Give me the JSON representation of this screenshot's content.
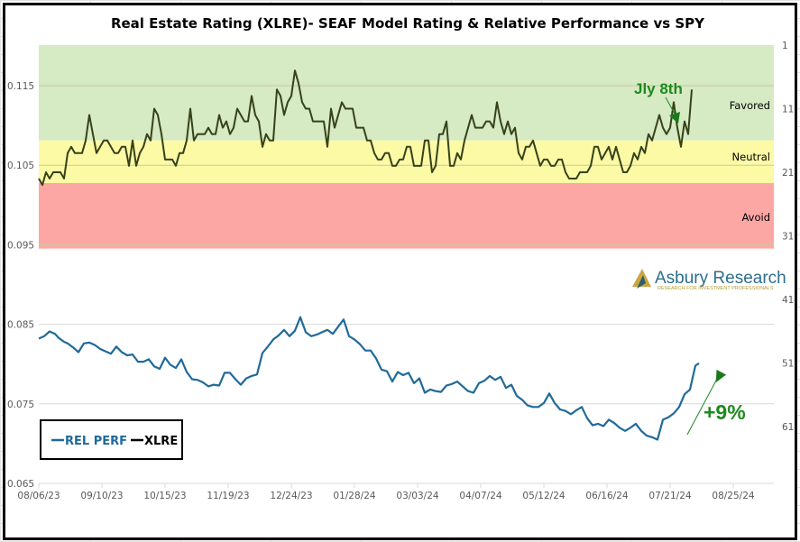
{
  "chart_data": {
    "type": "line",
    "title": "Real Estate Rating (XLRE)- SEAF Model Rating & Relative Performance vs SPY",
    "x_tick_labels": [
      "08/06/23",
      "09/10/23",
      "10/15/23",
      "11/19/23",
      "12/24/23",
      "01/28/24",
      "03/03/24",
      "04/07/24",
      "05/12/24",
      "06/16/24",
      "07/21/24",
      "08/25/24"
    ],
    "x_range": [
      "08/06/23",
      "09/22/24"
    ],
    "left_axis": {
      "label": "",
      "ticks": [
        "0.065",
        "0.075",
        "0.085",
        "0.095",
        "0.105",
        "0.115"
      ],
      "range": [
        0.065,
        0.12
      ]
    },
    "right_axis": {
      "label": "",
      "ticks": [
        "1",
        "11",
        "21",
        "31",
        "41",
        "51",
        "61"
      ],
      "range": [
        1,
        71
      ],
      "inverted": true
    },
    "bands": [
      {
        "name": "Favored",
        "from": 1,
        "to": 16,
        "color": "#d6eac4"
      },
      {
        "name": "Neutral",
        "from": 16,
        "to": 22.7,
        "color": "#fdfaa6"
      },
      {
        "name": "Avoid",
        "from": 22.7,
        "to": 33,
        "color": "#fda7a5"
      }
    ],
    "legend": {
      "position": "bottom-left",
      "entries": [
        "REL PERF",
        "XLRE"
      ]
    },
    "series": [
      {
        "name": "REL PERF",
        "axis": "left",
        "color": "#1f6a9a",
        "days": [
          0,
          3,
          6,
          9,
          11,
          14,
          16,
          19,
          22,
          25,
          28,
          31,
          34,
          37,
          40,
          43,
          46,
          49,
          52,
          55,
          58,
          61,
          64,
          67,
          70,
          73,
          76,
          79,
          82,
          85,
          88,
          91,
          94,
          97,
          100,
          103,
          106,
          109,
          112,
          115,
          118,
          121,
          124,
          127,
          130,
          133,
          136,
          139,
          142,
          145,
          148,
          151,
          154,
          157,
          160,
          163,
          166,
          169,
          172,
          175,
          178,
          181,
          184,
          187,
          190,
          193,
          196,
          199,
          202,
          205,
          208,
          211,
          214,
          217,
          220,
          223,
          226,
          229,
          232,
          235,
          238,
          241,
          244,
          247,
          250,
          253,
          256,
          259,
          262,
          265,
          268,
          271,
          274,
          277,
          280,
          283,
          286,
          289,
          292,
          295,
          298,
          301,
          304,
          307,
          310,
          313,
          316,
          319,
          322,
          325,
          328,
          331,
          334,
          337,
          340,
          343,
          346,
          349,
          352,
          355,
          358,
          361,
          364,
          366
        ],
        "values": [
          0.0832,
          0.0835,
          0.0841,
          0.0838,
          0.0833,
          0.0828,
          0.0826,
          0.0821,
          0.0815,
          0.0826,
          0.0827,
          0.0824,
          0.0819,
          0.0816,
          0.0813,
          0.0822,
          0.0815,
          0.0811,
          0.0812,
          0.0803,
          0.0803,
          0.0806,
          0.0797,
          0.0794,
          0.0808,
          0.0799,
          0.0795,
          0.0806,
          0.079,
          0.0781,
          0.078,
          0.0777,
          0.0772,
          0.0774,
          0.0773,
          0.0789,
          0.0789,
          0.0781,
          0.0774,
          0.0782,
          0.0785,
          0.0787,
          0.0814,
          0.0822,
          0.0831,
          0.0836,
          0.0843,
          0.0835,
          0.0842,
          0.0859,
          0.084,
          0.0835,
          0.0837,
          0.084,
          0.0843,
          0.0838,
          0.0847,
          0.0856,
          0.0835,
          0.0831,
          0.0825,
          0.0817,
          0.0817,
          0.0807,
          0.0793,
          0.0791,
          0.0778,
          0.079,
          0.0786,
          0.0789,
          0.0776,
          0.0782,
          0.0764,
          0.0768,
          0.0766,
          0.0765,
          0.0773,
          0.0775,
          0.0778,
          0.0772,
          0.0766,
          0.0764,
          0.0776,
          0.0779,
          0.0785,
          0.078,
          0.0784,
          0.077,
          0.0774,
          0.076,
          0.0755,
          0.0748,
          0.0746,
          0.0746,
          0.0751,
          0.0763,
          0.0751,
          0.0743,
          0.0741,
          0.0737,
          0.0742,
          0.0746,
          0.0732,
          0.0723,
          0.0725,
          0.0722,
          0.073,
          0.0726,
          0.072,
          0.0716,
          0.072,
          0.0725,
          0.0716,
          0.071,
          0.0708,
          0.0705,
          0.073,
          0.0733,
          0.0738,
          0.0746,
          0.0762,
          0.0768,
          0.0798,
          0.0801,
          0.079
        ],
        "notes": "Approximate values read from the chart; REL PERF plotted on left axis"
      },
      {
        "name": "XLRE",
        "axis": "right",
        "color": "#364218",
        "days": [
          0,
          2,
          4,
          6,
          8,
          10,
          12,
          14,
          16,
          18,
          20,
          22,
          24,
          26,
          28,
          30,
          32,
          34,
          36,
          38,
          40,
          42,
          44,
          46,
          48,
          50,
          52,
          54,
          56,
          58,
          60,
          62,
          64,
          66,
          68,
          70,
          72,
          74,
          76,
          78,
          80,
          82,
          84,
          86,
          88,
          90,
          92,
          94,
          96,
          98,
          100,
          102,
          104,
          106,
          108,
          110,
          112,
          114,
          116,
          118,
          120,
          122,
          124,
          126,
          128,
          130,
          132,
          134,
          136,
          138,
          140,
          142,
          144,
          146,
          148,
          150,
          152,
          154,
          156,
          158,
          160,
          162,
          164,
          166,
          168,
          170,
          172,
          174,
          176,
          178,
          180,
          182,
          184,
          186,
          188,
          190,
          192,
          194,
          196,
          198,
          200,
          202,
          204,
          206,
          208,
          210,
          212,
          214,
          216,
          218,
          220,
          222,
          224,
          226,
          228,
          230,
          232,
          234,
          236,
          238,
          240,
          242,
          244,
          246,
          248,
          250,
          252,
          254,
          256,
          258,
          260,
          262,
          264,
          266,
          268,
          270,
          272,
          274,
          276,
          278,
          280,
          282,
          284,
          286,
          288,
          290,
          292,
          294,
          296,
          298,
          300,
          302,
          304,
          306,
          308,
          310,
          312,
          314,
          316,
          318,
          320,
          322,
          324,
          326,
          328,
          330,
          332,
          334,
          336,
          338,
          340,
          342,
          344,
          346,
          348,
          350,
          352,
          354,
          356,
          358,
          360,
          362,
          364,
          366,
          368
        ],
        "values": [
          22,
          23,
          21,
          22,
          21,
          21,
          21,
          22,
          18,
          17,
          18,
          18,
          18,
          16,
          12,
          15,
          18,
          17,
          16,
          16,
          17,
          18,
          18,
          17,
          17,
          20,
          16,
          20,
          18,
          17,
          15,
          16,
          11,
          12,
          15,
          19,
          19,
          19,
          20,
          18,
          18,
          16,
          11,
          16,
          15,
          15,
          15,
          14,
          15,
          15,
          12,
          14,
          13,
          15,
          14,
          11,
          12,
          13,
          13,
          9,
          12,
          13,
          17,
          15,
          16,
          16,
          8,
          9,
          12,
          10,
          9,
          5,
          7,
          10,
          11,
          11,
          13,
          13,
          13,
          13,
          17,
          11,
          14,
          12,
          10,
          11,
          11,
          11,
          14,
          14,
          14,
          16,
          16,
          18,
          19,
          19,
          18,
          18,
          20,
          20,
          19,
          19,
          17,
          17,
          20,
          20,
          20,
          16,
          16,
          21,
          20,
          15,
          15,
          13,
          20,
          20,
          18,
          19,
          16,
          14,
          12,
          14,
          14,
          14,
          13,
          13,
          14,
          10,
          13,
          15,
          13,
          15,
          14,
          18,
          19,
          17,
          17,
          16,
          18,
          20,
          19,
          19,
          20,
          20,
          19,
          19,
          21,
          22,
          22,
          22,
          21,
          21,
          21,
          20,
          17,
          17,
          19,
          18,
          17,
          19,
          17,
          19,
          21,
          21,
          20,
          18,
          19,
          17,
          18,
          15,
          16,
          14,
          12,
          14,
          15,
          14,
          10,
          14,
          17,
          13,
          15,
          8
        ],
        "notes": "SEAF model rank (1 = best), plotted on inverted right axis; approximate"
      }
    ],
    "annotations": [
      {
        "text": "Jly 8th",
        "target_date": "07/08/24",
        "color": "#1e8a1e"
      },
      {
        "text": "+9%",
        "color": "#1e8a1e"
      }
    ],
    "logo": {
      "name": "Asbury Research",
      "tagline": "RESEARCH FOR INVESTMENT PROFESSIONALS"
    }
  }
}
